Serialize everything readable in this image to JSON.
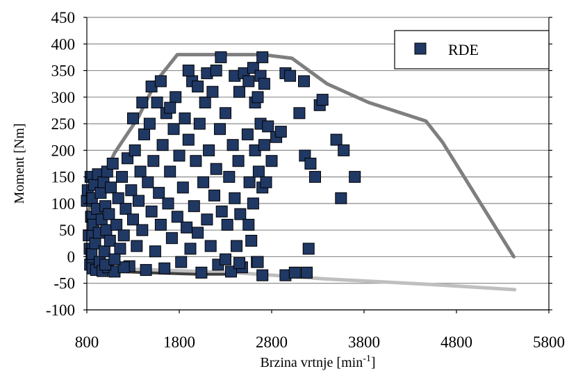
{
  "chart_data": {
    "type": "scatter",
    "title": "",
    "xlabel": "Brzina vrtnje [min",
    "xlabel_sup": "-1",
    "xlabel_suffix": "]",
    "ylabel": "Moment [Nm]",
    "xlim": [
      800,
      5800
    ],
    "ylim": [
      -100,
      450
    ],
    "x_ticks": [
      800,
      1800,
      2800,
      3800,
      4800,
      5800
    ],
    "y_ticks": [
      -100,
      -50,
      0,
      50,
      100,
      150,
      200,
      250,
      300,
      350,
      400,
      450
    ],
    "x_tick_labels": [
      "800",
      "1800",
      "2800",
      "3800",
      "4800",
      "5800"
    ],
    "y_tick_labels": [
      "-100",
      "-50",
      "0",
      "50",
      "100",
      "150",
      "200",
      "250",
      "300",
      "350",
      "400",
      "450"
    ],
    "grid": "horizontal",
    "legend": {
      "position": "top-right",
      "entries": [
        "RDE"
      ]
    },
    "series": [
      {
        "name": "RDE",
        "kind": "scatter",
        "marker": "square",
        "color": "#203864",
        "points": [
          [
            800,
            105
          ],
          [
            810,
            125
          ],
          [
            820,
            40
          ],
          [
            830,
            15
          ],
          [
            835,
            -15
          ],
          [
            840,
            150
          ],
          [
            845,
            75
          ],
          [
            850,
            5
          ],
          [
            855,
            110
          ],
          [
            860,
            -22
          ],
          [
            870,
            60
          ],
          [
            880,
            135
          ],
          [
            890,
            25
          ],
          [
            900,
            -25
          ],
          [
            910,
            90
          ],
          [
            920,
            155
          ],
          [
            930,
            45
          ],
          [
            940,
            -10
          ],
          [
            950,
            120
          ],
          [
            960,
            70
          ],
          [
            970,
            -27
          ],
          [
            980,
            140
          ],
          [
            990,
            10
          ],
          [
            1000,
            95
          ],
          [
            1010,
            50
          ],
          [
            1020,
            160
          ],
          [
            1030,
            -20
          ],
          [
            1040,
            80
          ],
          [
            1050,
            30
          ],
          [
            1060,
            130
          ],
          [
            1080,
            175
          ],
          [
            1100,
            -28
          ],
          [
            1120,
            60
          ],
          [
            1140,
            110
          ],
          [
            1160,
            15
          ],
          [
            1180,
            150
          ],
          [
            1200,
            40
          ],
          [
            1220,
            90
          ],
          [
            1240,
            185
          ],
          [
            1260,
            -18
          ],
          [
            1280,
            125
          ],
          [
            1300,
            70
          ],
          [
            1320,
            200
          ],
          [
            1340,
            20
          ],
          [
            1360,
            105
          ],
          [
            1380,
            160
          ],
          [
            1400,
            50
          ],
          [
            1420,
            230
          ],
          [
            1440,
            -25
          ],
          [
            1460,
            140
          ],
          [
            1480,
            250
          ],
          [
            1500,
            85
          ],
          [
            1520,
            180
          ],
          [
            1540,
            10
          ],
          [
            1560,
            290
          ],
          [
            1580,
            120
          ],
          [
            1600,
            60
          ],
          [
            1620,
            210
          ],
          [
            1640,
            -22
          ],
          [
            1660,
            270
          ],
          [
            1680,
            100
          ],
          [
            1700,
            160
          ],
          [
            1720,
            35
          ],
          [
            1740,
            240
          ],
          [
            1760,
            300
          ],
          [
            1780,
            75
          ],
          [
            1800,
            190
          ],
          [
            1820,
            -10
          ],
          [
            1840,
            130
          ],
          [
            1860,
            260
          ],
          [
            1880,
            55
          ],
          [
            1900,
            220
          ],
          [
            1920,
            15
          ],
          [
            1940,
            330
          ],
          [
            1960,
            95
          ],
          [
            1980,
            180
          ],
          [
            2000,
            45
          ],
          [
            2020,
            250
          ],
          [
            2040,
            -30
          ],
          [
            2060,
            140
          ],
          [
            2080,
            290
          ],
          [
            2100,
            70
          ],
          [
            2120,
            200
          ],
          [
            2140,
            20
          ],
          [
            2160,
            310
          ],
          [
            2180,
            115
          ],
          [
            2200,
            165
          ],
          [
            2220,
            -15
          ],
          [
            2240,
            240
          ],
          [
            2260,
            85
          ],
          [
            1500,
            320
          ],
          [
            1400,
            290
          ],
          [
            1300,
            260
          ],
          [
            1600,
            330
          ],
          [
            1700,
            280
          ],
          [
            1900,
            350
          ],
          [
            2000,
            320
          ],
          [
            2100,
            345
          ],
          [
            2200,
            350
          ],
          [
            2250,
            375
          ],
          [
            2300,
            270
          ],
          [
            2320,
            60
          ],
          [
            2340,
            150
          ],
          [
            2360,
            -28
          ],
          [
            2380,
            210
          ],
          [
            2400,
            110
          ],
          [
            2420,
            20
          ],
          [
            2440,
            180
          ],
          [
            2460,
            80
          ],
          [
            2480,
            -20
          ],
          [
            2400,
            340
          ],
          [
            2450,
            310
          ],
          [
            2500,
            345
          ],
          [
            2550,
            330
          ],
          [
            2600,
            355
          ],
          [
            2620,
            290
          ],
          [
            2650,
            300
          ],
          [
            2680,
            340
          ],
          [
            2700,
            375
          ],
          [
            2720,
            325
          ],
          [
            2540,
            230
          ],
          [
            2560,
            140
          ],
          [
            2580,
            30
          ],
          [
            2600,
            100
          ],
          [
            2620,
            200
          ],
          [
            2640,
            -10
          ],
          [
            2660,
            160
          ],
          [
            2680,
            250
          ],
          [
            2700,
            130
          ],
          [
            2720,
            210
          ],
          [
            2740,
            140
          ],
          [
            2760,
            245
          ],
          [
            2800,
            180
          ],
          [
            2850,
            225
          ],
          [
            2900,
            235
          ],
          [
            2950,
            345
          ],
          [
            3000,
            340
          ],
          [
            2700,
            -35
          ],
          [
            2950,
            -35
          ],
          [
            3050,
            -30
          ],
          [
            3100,
            270
          ],
          [
            3150,
            330
          ],
          [
            3160,
            190
          ],
          [
            3200,
            15
          ],
          [
            3220,
            175
          ],
          [
            3270,
            150
          ],
          [
            3320,
            285
          ],
          [
            3350,
            295
          ],
          [
            3500,
            220
          ],
          [
            3550,
            110
          ],
          [
            3580,
            200
          ],
          [
            3700,
            150
          ],
          [
            3180,
            -30
          ],
          [
            2450,
            -12
          ],
          [
            2650,
            -10
          ],
          [
            2550,
            60
          ],
          [
            2300,
            -5
          ],
          [
            1200,
            -20
          ],
          [
            1000,
            -15
          ],
          [
            1100,
            -5
          ]
        ]
      }
    ],
    "full_load_curve": {
      "name": "",
      "color": "#7f7f7f",
      "points": [
        [
          800,
          80
        ],
        [
          1100,
          195
        ],
        [
          1350,
          260
        ],
        [
          1550,
          330
        ],
        [
          1780,
          380
        ],
        [
          2700,
          380
        ],
        [
          3020,
          373
        ],
        [
          3400,
          325
        ],
        [
          3850,
          290
        ],
        [
          4470,
          255
        ],
        [
          4650,
          215
        ],
        [
          5420,
          0
        ]
      ]
    },
    "motoring_curve": {
      "name": "",
      "color": "#bfbfbf",
      "points": [
        [
          1020,
          -22
        ],
        [
          2400,
          -30
        ],
        [
          3400,
          -42
        ],
        [
          4500,
          -52
        ],
        [
          5430,
          -62
        ]
      ]
    },
    "lower_band": {
      "name": "",
      "color": "#404040",
      "points": [
        [
          830,
          -25
        ],
        [
          1400,
          -30
        ],
        [
          2000,
          -33
        ],
        [
          2400,
          -33
        ]
      ]
    }
  }
}
